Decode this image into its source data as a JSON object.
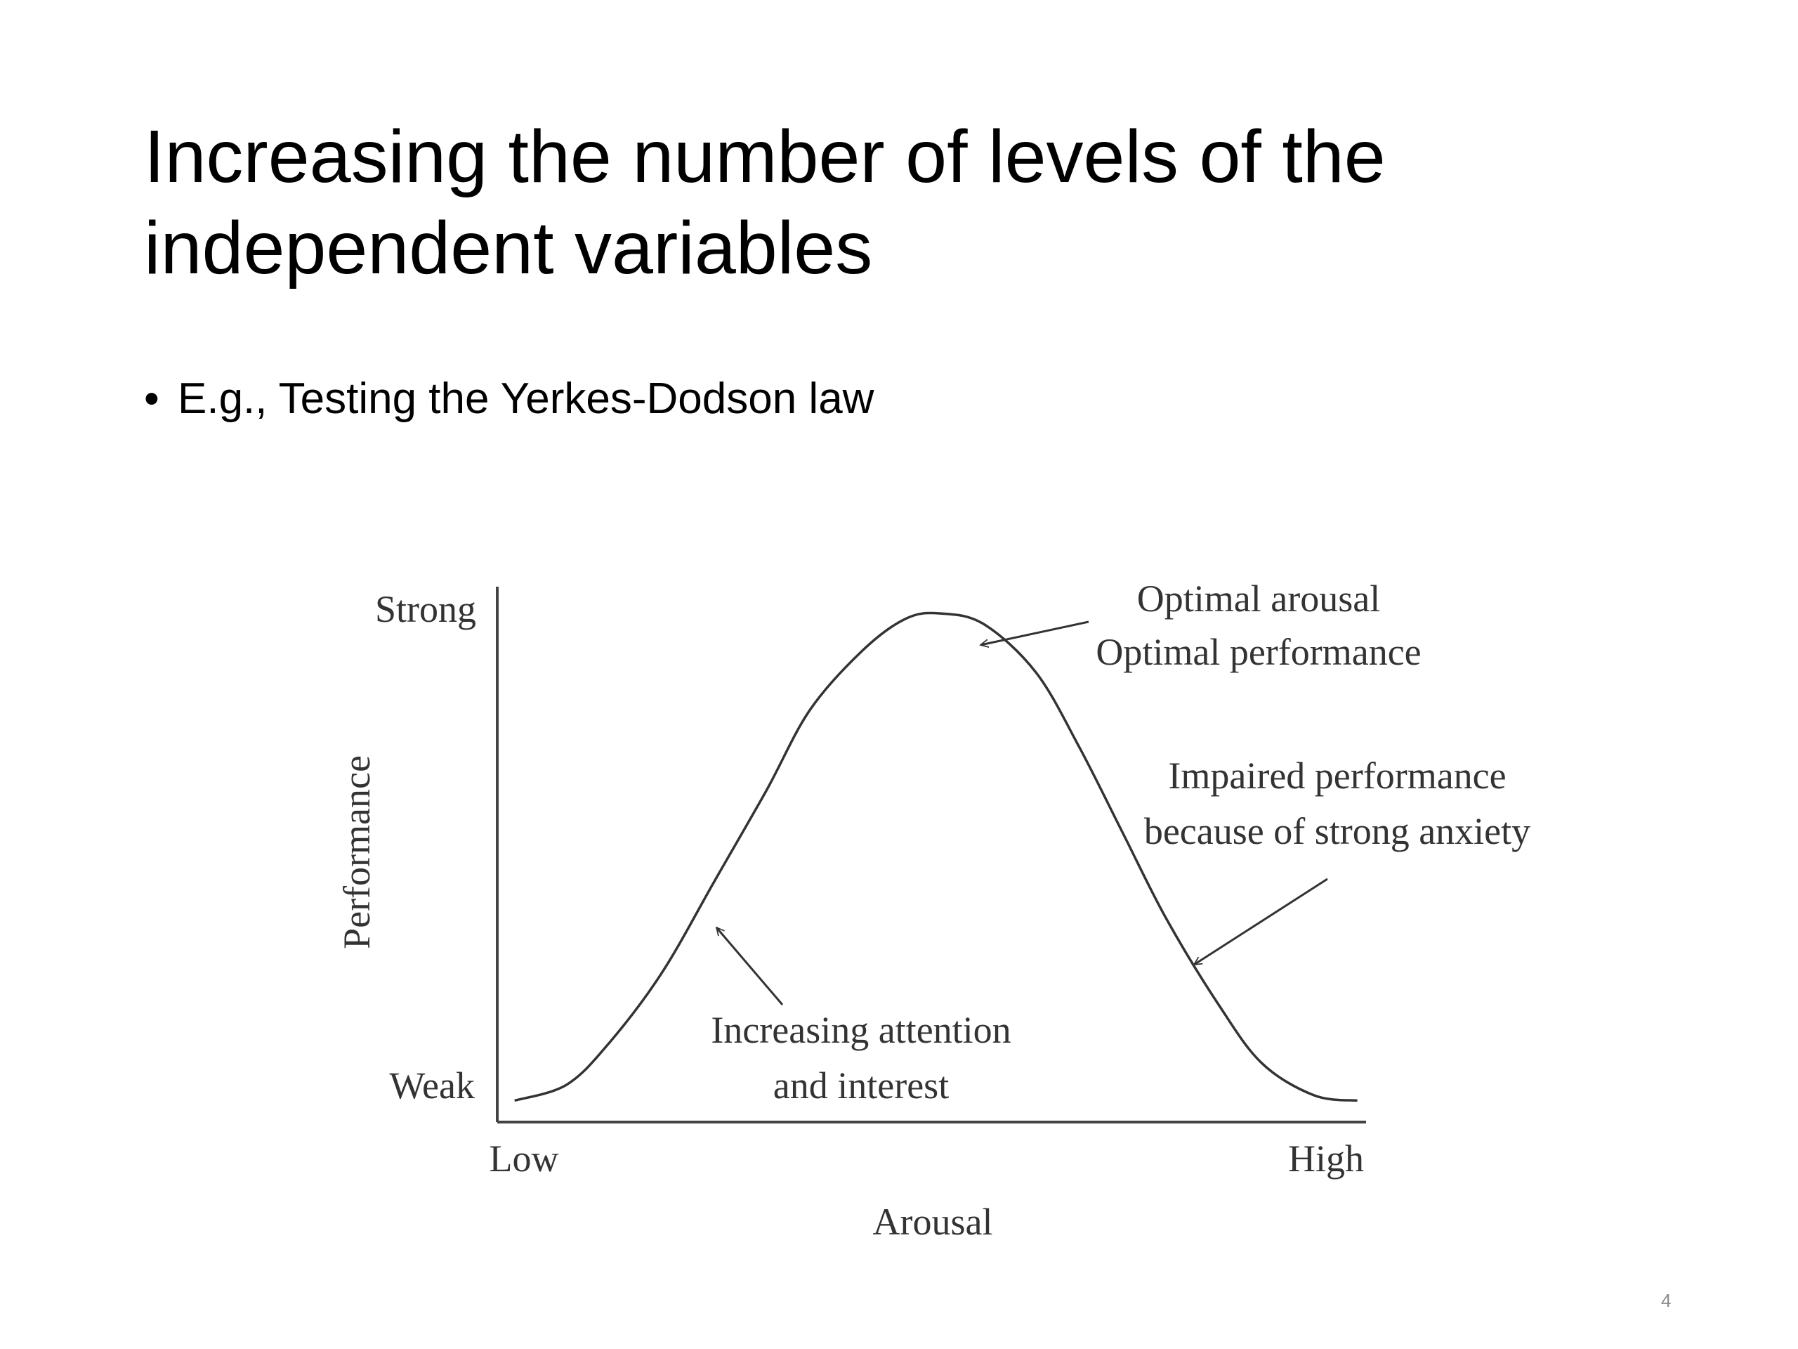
{
  "slide": {
    "title_lines": [
      "Increasing the number of levels of the",
      "independent variables"
    ],
    "bullet": "E.g., Testing the Yerkes-Dodson law",
    "page_number": "4"
  },
  "chart_data": {
    "type": "line",
    "title": "",
    "xlabel": "Arousal",
    "ylabel": "Performance",
    "x_tick_labels": [
      "Low",
      "High"
    ],
    "y_tick_labels": [
      "Weak",
      "Strong"
    ],
    "xlim": [
      0,
      1
    ],
    "ylim": [
      0,
      1
    ],
    "grid": false,
    "legend": "none",
    "series": [
      {
        "x": [
          0.02,
          0.08,
          0.13,
          0.19,
          0.25,
          0.31,
          0.36,
          0.42,
          0.47,
          0.51,
          0.56,
          0.62,
          0.67,
          0.72,
          0.77,
          0.83,
          0.88,
          0.94,
          0.99
        ],
        "y": [
          0.04,
          0.07,
          0.15,
          0.28,
          0.45,
          0.62,
          0.77,
          0.88,
          0.94,
          0.95,
          0.93,
          0.84,
          0.7,
          0.54,
          0.38,
          0.22,
          0.11,
          0.05,
          0.04
        ]
      }
    ],
    "annotations": [
      {
        "lines": [
          "Optimal arousal",
          "Optimal performance"
        ],
        "points_to": {
          "x": 0.55,
          "y": 0.94
        }
      },
      {
        "lines": [
          "Impaired performance",
          "because of strong anxiety"
        ],
        "points_to": {
          "x": 0.8,
          "y": 0.3
        }
      },
      {
        "lines": [
          "Increasing attention",
          "and interest"
        ],
        "points_to": {
          "x": 0.25,
          "y": 0.42
        }
      }
    ]
  }
}
